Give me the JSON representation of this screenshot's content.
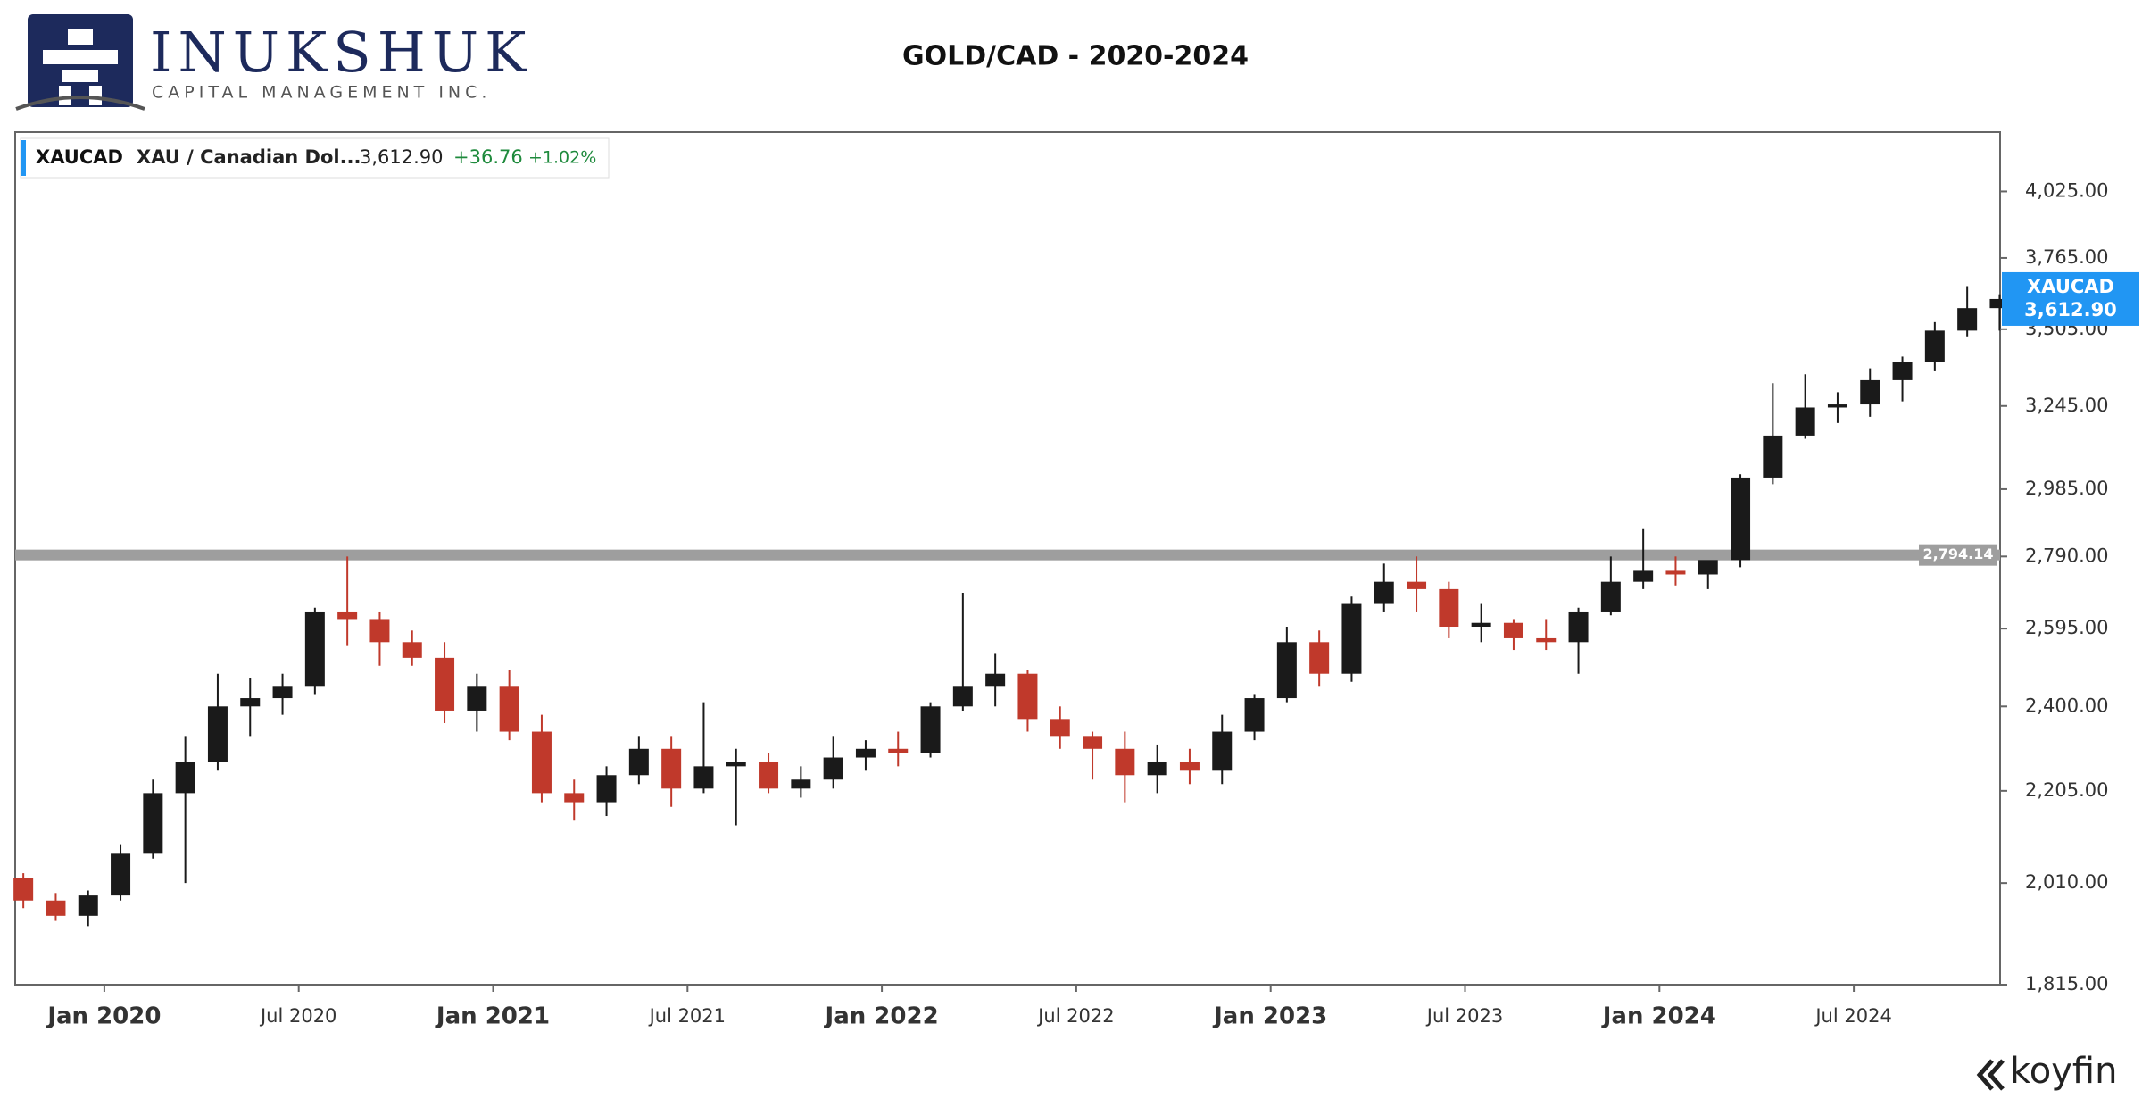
{
  "header": {
    "brand": "INUKSHUK",
    "tagline": "CAPITAL MANAGEMENT INC.",
    "footer": "koyfin"
  },
  "chart_data": {
    "type": "candlestick",
    "title": "GOLD/CAD - 2020-2024",
    "log_scale": true,
    "up_color": "#1a1a1a",
    "down_color": "#c0392b",
    "legend": {
      "symbol": "XAUCAD",
      "name": "XAU / Canadian Dol...",
      "last": "3,612.90",
      "change": "+36.76",
      "change_pct": "+1.02%"
    },
    "badge": {
      "symbol": "XAUCAD",
      "last": "3,612.90"
    },
    "level": {
      "value": 2794.14,
      "label": "2,794.14"
    },
    "x": [
      "2019-10",
      "2019-11",
      "2019-12",
      "2020-01",
      "2020-02",
      "2020-03",
      "2020-04",
      "2020-05",
      "2020-06",
      "2020-07",
      "2020-08",
      "2020-09",
      "2020-10",
      "2020-11",
      "2020-12",
      "2021-01",
      "2021-02",
      "2021-03",
      "2021-04",
      "2021-05",
      "2021-06",
      "2021-07",
      "2021-08",
      "2021-09",
      "2021-10",
      "2021-11",
      "2021-12",
      "2022-01",
      "2022-02",
      "2022-03",
      "2022-04",
      "2022-05",
      "2022-06",
      "2022-07",
      "2022-08",
      "2022-09",
      "2022-10",
      "2022-11",
      "2022-12",
      "2023-01",
      "2023-02",
      "2023-03",
      "2023-04",
      "2023-05",
      "2023-06",
      "2023-07",
      "2023-08",
      "2023-09",
      "2023-10",
      "2023-11",
      "2023-12",
      "2024-01",
      "2024-02",
      "2024-03",
      "2024-04",
      "2024-05",
      "2024-06",
      "2024-07",
      "2024-08",
      "2024-09",
      "2024-10",
      "2024-11"
    ],
    "open": [
      2020,
      1975,
      1945,
      1985,
      2070,
      2200,
      2270,
      2400,
      2420,
      2450,
      2640,
      2620,
      2560,
      2520,
      2390,
      2450,
      2340,
      2200,
      2180,
      2240,
      2300,
      2210,
      2260,
      2270,
      2210,
      2230,
      2280,
      2300,
      2290,
      2400,
      2450,
      2480,
      2370,
      2330,
      2300,
      2240,
      2270,
      2250,
      2340,
      2420,
      2560,
      2480,
      2660,
      2720,
      2700,
      2600,
      2610,
      2570,
      2560,
      2640,
      2720,
      2750,
      2740,
      2780,
      3020,
      3150,
      3240,
      3250,
      3330,
      3390,
      3500,
      3580
    ],
    "high": [
      2030,
      1990,
      1995,
      2090,
      2230,
      2330,
      2480,
      2470,
      2480,
      2650,
      2790,
      2640,
      2590,
      2560,
      2480,
      2490,
      2380,
      2230,
      2260,
      2330,
      2330,
      2410,
      2300,
      2290,
      2260,
      2330,
      2320,
      2340,
      2410,
      2690,
      2530,
      2490,
      2400,
      2340,
      2340,
      2310,
      2300,
      2380,
      2430,
      2600,
      2590,
      2680,
      2770,
      2790,
      2720,
      2660,
      2620,
      2620,
      2650,
      2790,
      2870,
      2790,
      2760,
      3030,
      3320,
      3350,
      3290,
      3370,
      3410,
      3530,
      3660,
      3630
    ],
    "low": [
      1960,
      1935,
      1925,
      1975,
      2060,
      2010,
      2250,
      2330,
      2380,
      2430,
      2550,
      2500,
      2500,
      2360,
      2340,
      2320,
      2180,
      2140,
      2150,
      2220,
      2170,
      2200,
      2130,
      2200,
      2190,
      2210,
      2250,
      2260,
      2280,
      2390,
      2400,
      2340,
      2300,
      2230,
      2180,
      2200,
      2220,
      2220,
      2320,
      2410,
      2450,
      2460,
      2640,
      2640,
      2570,
      2560,
      2540,
      2540,
      2480,
      2630,
      2700,
      2710,
      2700,
      2760,
      3000,
      3140,
      3190,
      3210,
      3260,
      3360,
      3480,
      3500
    ],
    "close": [
      1975,
      1945,
      1985,
      2070,
      2200,
      2270,
      2400,
      2420,
      2450,
      2640,
      2620,
      2560,
      2520,
      2390,
      2450,
      2340,
      2200,
      2180,
      2240,
      2300,
      2210,
      2260,
      2270,
      2210,
      2230,
      2280,
      2300,
      2290,
      2400,
      2450,
      2480,
      2370,
      2330,
      2300,
      2240,
      2270,
      2250,
      2340,
      2420,
      2560,
      2480,
      2660,
      2720,
      2700,
      2600,
      2610,
      2570,
      2560,
      2640,
      2720,
      2750,
      2740,
      2780,
      3020,
      3150,
      3240,
      3250,
      3330,
      3390,
      3500,
      3580,
      3612.9
    ],
    "xticks": [
      {
        "value": "2020-01",
        "label": "Jan 2020"
      },
      {
        "value": "2020-07",
        "label": "Jul 2020"
      },
      {
        "value": "2021-01",
        "label": "Jan 2021"
      },
      {
        "value": "2021-07",
        "label": "Jul 2021"
      },
      {
        "value": "2022-01",
        "label": "Jan 2022"
      },
      {
        "value": "2022-07",
        "label": "Jul 2022"
      },
      {
        "value": "2023-01",
        "label": "Jan 2023"
      },
      {
        "value": "2023-07",
        "label": "Jul 2023"
      },
      {
        "value": "2024-01",
        "label": "Jan 2024"
      },
      {
        "value": "2024-07",
        "label": "Jul 2024"
      }
    ],
    "ylim": [
      1815,
      4272
    ],
    "yticks": [
      {
        "value": 1815,
        "label": "1,815.00"
      },
      {
        "value": 2010,
        "label": "2,010.00"
      },
      {
        "value": 2205,
        "label": "2,205.00"
      },
      {
        "value": 2400,
        "label": "2,400.00"
      },
      {
        "value": 2595,
        "label": "2,595.00"
      },
      {
        "value": 2790,
        "label": "2,790.00"
      },
      {
        "value": 2985,
        "label": "2,985.00"
      },
      {
        "value": 3245,
        "label": "3,245.00"
      },
      {
        "value": 3505,
        "label": "3,505.00"
      },
      {
        "value": 3765,
        "label": "3,765.00"
      },
      {
        "value": 4025,
        "label": "4,025.00"
      }
    ]
  }
}
